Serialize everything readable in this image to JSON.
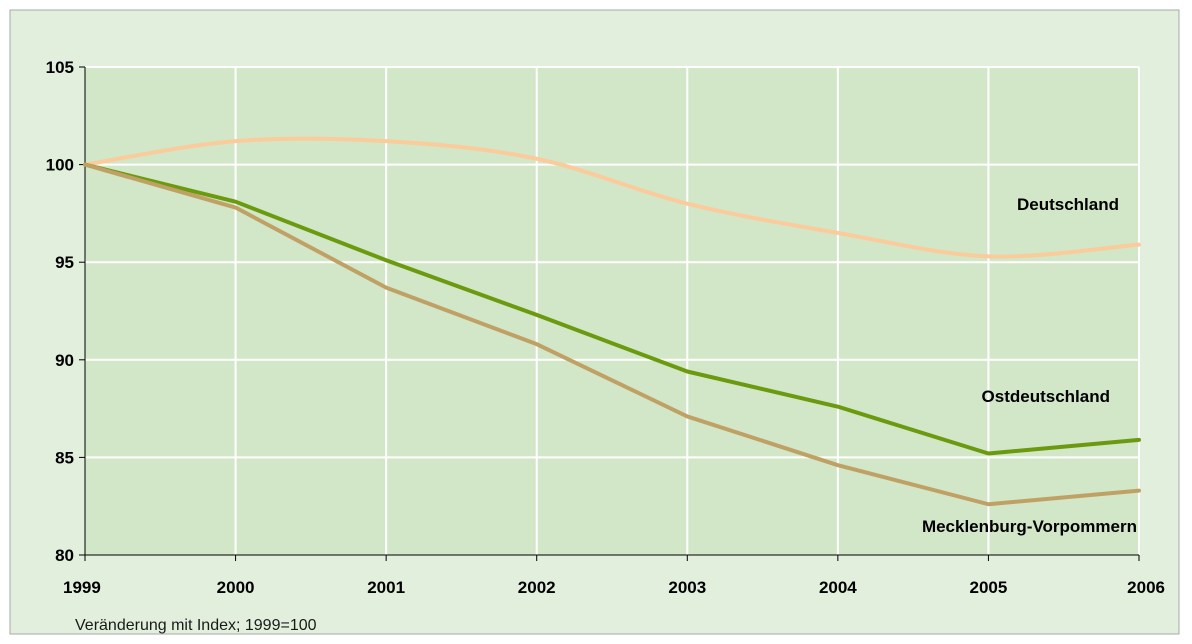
{
  "chart_data": {
    "type": "line",
    "x": [
      "1999",
      "2000",
      "2001",
      "2002",
      "2003",
      "2004",
      "2005",
      "2006"
    ],
    "ylim": [
      80,
      105
    ],
    "yticks": [
      80,
      85,
      90,
      95,
      100,
      105
    ],
    "grid": true,
    "legend": "inline labels at right",
    "series": [
      {
        "name": "Deutschland",
        "color": "#fbcb9c",
        "values": [
          100,
          101.2,
          101.2,
          100.3,
          98.0,
          96.5,
          95.3,
          95.9
        ]
      },
      {
        "name": "Ostdeutschland",
        "color": "#6b9a0f",
        "values": [
          100,
          98.1,
          95.1,
          92.3,
          89.4,
          87.6,
          85.2,
          85.9
        ]
      },
      {
        "name": "Mecklenburg-Vorpommern",
        "color": "#c0a165",
        "values": [
          100,
          97.8,
          93.7,
          90.8,
          87.1,
          84.6,
          82.6,
          83.3
        ]
      }
    ],
    "note": "Veränderung mit Index; 1999=100"
  },
  "colors": {
    "outer_background": "#e1efdc",
    "plot_background": "#d2e6c8",
    "gridline": "#ffffff",
    "frame_border": "#a8a8a8",
    "axis": "#000000"
  }
}
